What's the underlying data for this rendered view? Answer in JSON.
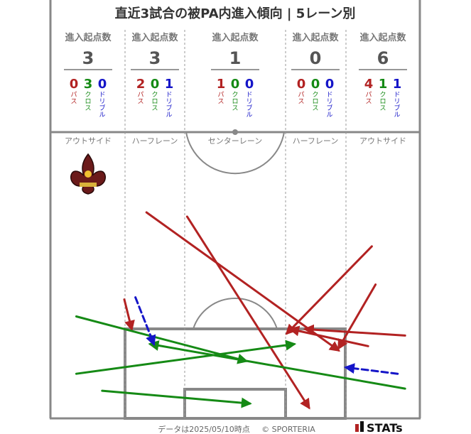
{
  "title": "直近3試合の被PA内進入傾向 | 5レーン別",
  "footer": {
    "data_date": "データは2025/05/10時点",
    "copyright": "© SPORTERIA",
    "brand": "STATs"
  },
  "colors": {
    "pass": "#b22222",
    "cross": "#158a15",
    "dribble": "#1515c8",
    "field_line": "#888888",
    "text_gray": "#777777"
  },
  "chart_data": {
    "type": "pitch-arrows",
    "summary_header": "進入起点数",
    "type_labels": [
      "パス",
      "クロス",
      "ドリブル"
    ],
    "lanes": [
      {
        "name": "アウトサイド",
        "total": 3,
        "pass": 0,
        "cross": 3,
        "dribble": 0
      },
      {
        "name": "ハーフレーン",
        "total": 3,
        "pass": 2,
        "cross": 0,
        "dribble": 1
      },
      {
        "name": "センターレーン",
        "total": 1,
        "pass": 1,
        "cross": 0,
        "dribble": 0
      },
      {
        "name": "ハーフレーン",
        "total": 0,
        "pass": 0,
        "cross": 0,
        "dribble": 0
      },
      {
        "name": "アウトサイド",
        "total": 6,
        "pass": 4,
        "cross": 1,
        "dribble": 1
      }
    ],
    "entries": [
      {
        "type": "pass",
        "from": [
          0.26,
          0.03
        ],
        "to": [
          0.78,
          0.68
        ]
      },
      {
        "type": "pass",
        "from": [
          0.37,
          0.05
        ],
        "to": [
          0.7,
          0.95
        ]
      },
      {
        "type": "pass",
        "from": [
          0.87,
          0.19
        ],
        "to": [
          0.64,
          0.6
        ]
      },
      {
        "type": "pass",
        "from": [
          0.88,
          0.37
        ],
        "to": [
          0.78,
          0.67
        ]
      },
      {
        "type": "pass",
        "from": [
          0.96,
          0.61
        ],
        "to": [
          0.69,
          0.58
        ]
      },
      {
        "type": "pass",
        "from": [
          0.86,
          0.66
        ],
        "to": [
          0.65,
          0.58
        ]
      },
      {
        "type": "pass",
        "from": [
          0.2,
          0.44
        ],
        "to": [
          0.22,
          0.58
        ]
      },
      {
        "type": "cross",
        "from": [
          0.07,
          0.52
        ],
        "to": [
          0.53,
          0.73
        ]
      },
      {
        "type": "cross",
        "from": [
          0.07,
          0.79
        ],
        "to": [
          0.66,
          0.65
        ]
      },
      {
        "type": "cross",
        "from": [
          0.96,
          0.86
        ],
        "to": [
          0.27,
          0.65
        ]
      },
      {
        "type": "cross",
        "from": [
          0.14,
          0.87
        ],
        "to": [
          0.54,
          0.93
        ]
      },
      {
        "type": "dribble",
        "from": [
          0.23,
          0.43
        ],
        "to": [
          0.28,
          0.65
        ]
      },
      {
        "type": "dribble",
        "from": [
          0.94,
          0.79
        ],
        "to": [
          0.8,
          0.76
        ]
      }
    ]
  }
}
